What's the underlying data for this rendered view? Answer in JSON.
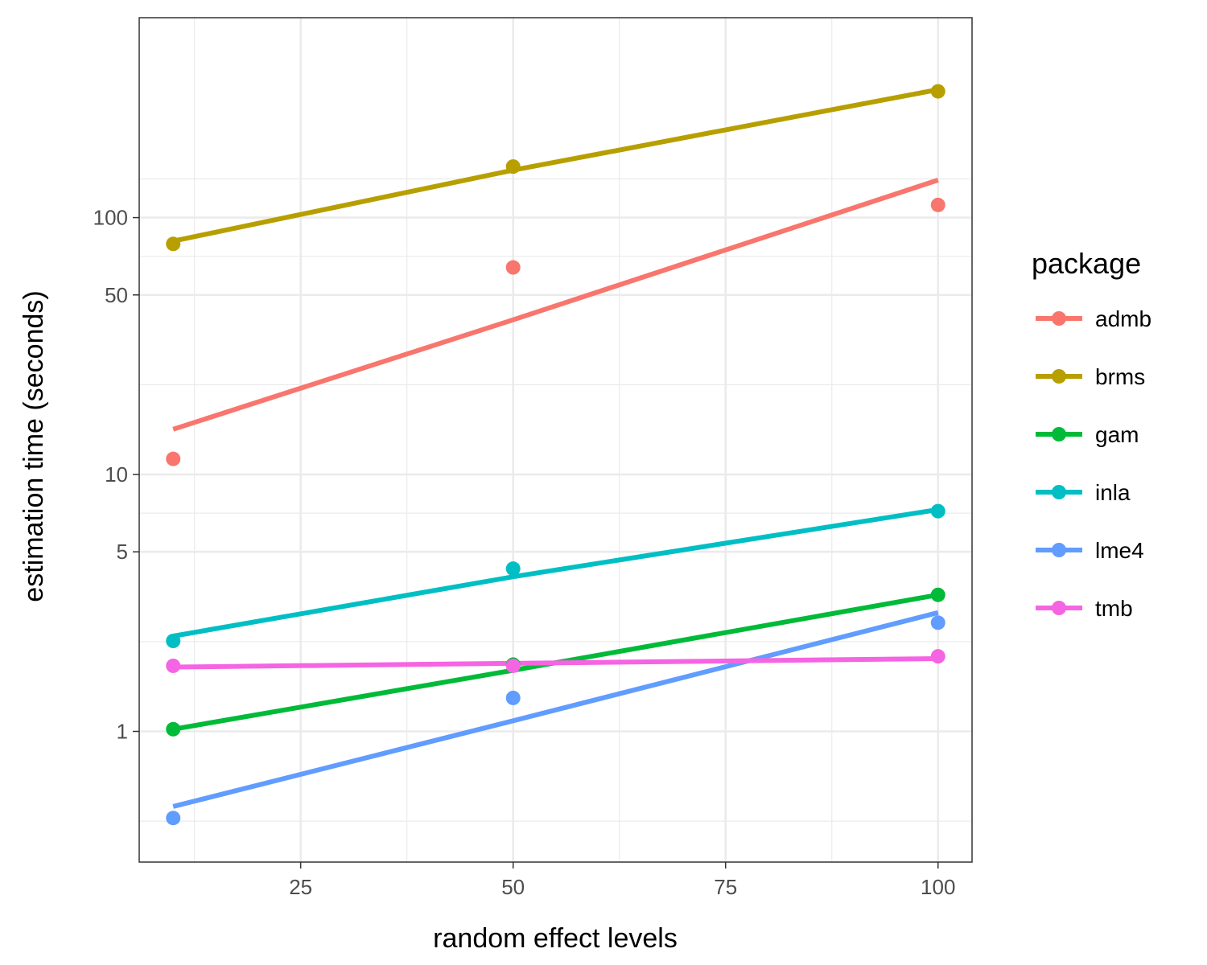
{
  "chart_data": {
    "type": "scatter",
    "xlabel": "random effect levels",
    "ylabel": "estimation time (seconds)",
    "x_scale": "linear",
    "y_scale": "log10",
    "xlim": [
      6,
      104
    ],
    "ylim": [
      0.31,
      600
    ],
    "x_ticks": [
      25,
      50,
      75,
      100
    ],
    "x_tick_labels": [
      "25",
      "50",
      "75",
      "100"
    ],
    "y_ticks": [
      1,
      5,
      10,
      50,
      100
    ],
    "y_tick_labels": [
      "1",
      "5",
      "10",
      "50",
      "100"
    ],
    "grid": true,
    "legend": {
      "title": "package",
      "position": "right"
    },
    "x": [
      10,
      50,
      100
    ],
    "series": [
      {
        "name": "admb",
        "color": "#F8766D",
        "points": [
          11.5,
          64,
          112
        ],
        "fit": [
          15,
          40,
          140
        ]
      },
      {
        "name": "brms",
        "color": "#B79F00",
        "points": [
          79,
          158,
          310
        ],
        "fit": [
          81,
          153,
          315
        ]
      },
      {
        "name": "gam",
        "color": "#00BA38",
        "points": [
          1.02,
          1.82,
          3.4
        ],
        "fit": [
          1.02,
          1.73,
          3.4
        ]
      },
      {
        "name": "inla",
        "color": "#00BFC4",
        "points": [
          2.25,
          4.3,
          7.2
        ],
        "fit": [
          2.35,
          4.0,
          7.3
        ]
      },
      {
        "name": "lme4",
        "color": "#619CFF",
        "points": [
          0.46,
          1.35,
          2.65
        ],
        "fit": [
          0.51,
          1.1,
          2.9
        ]
      },
      {
        "name": "tmb",
        "color": "#F564E3",
        "points": [
          1.8,
          1.8,
          1.96
        ],
        "fit": [
          1.78,
          1.84,
          1.92
        ]
      }
    ]
  }
}
